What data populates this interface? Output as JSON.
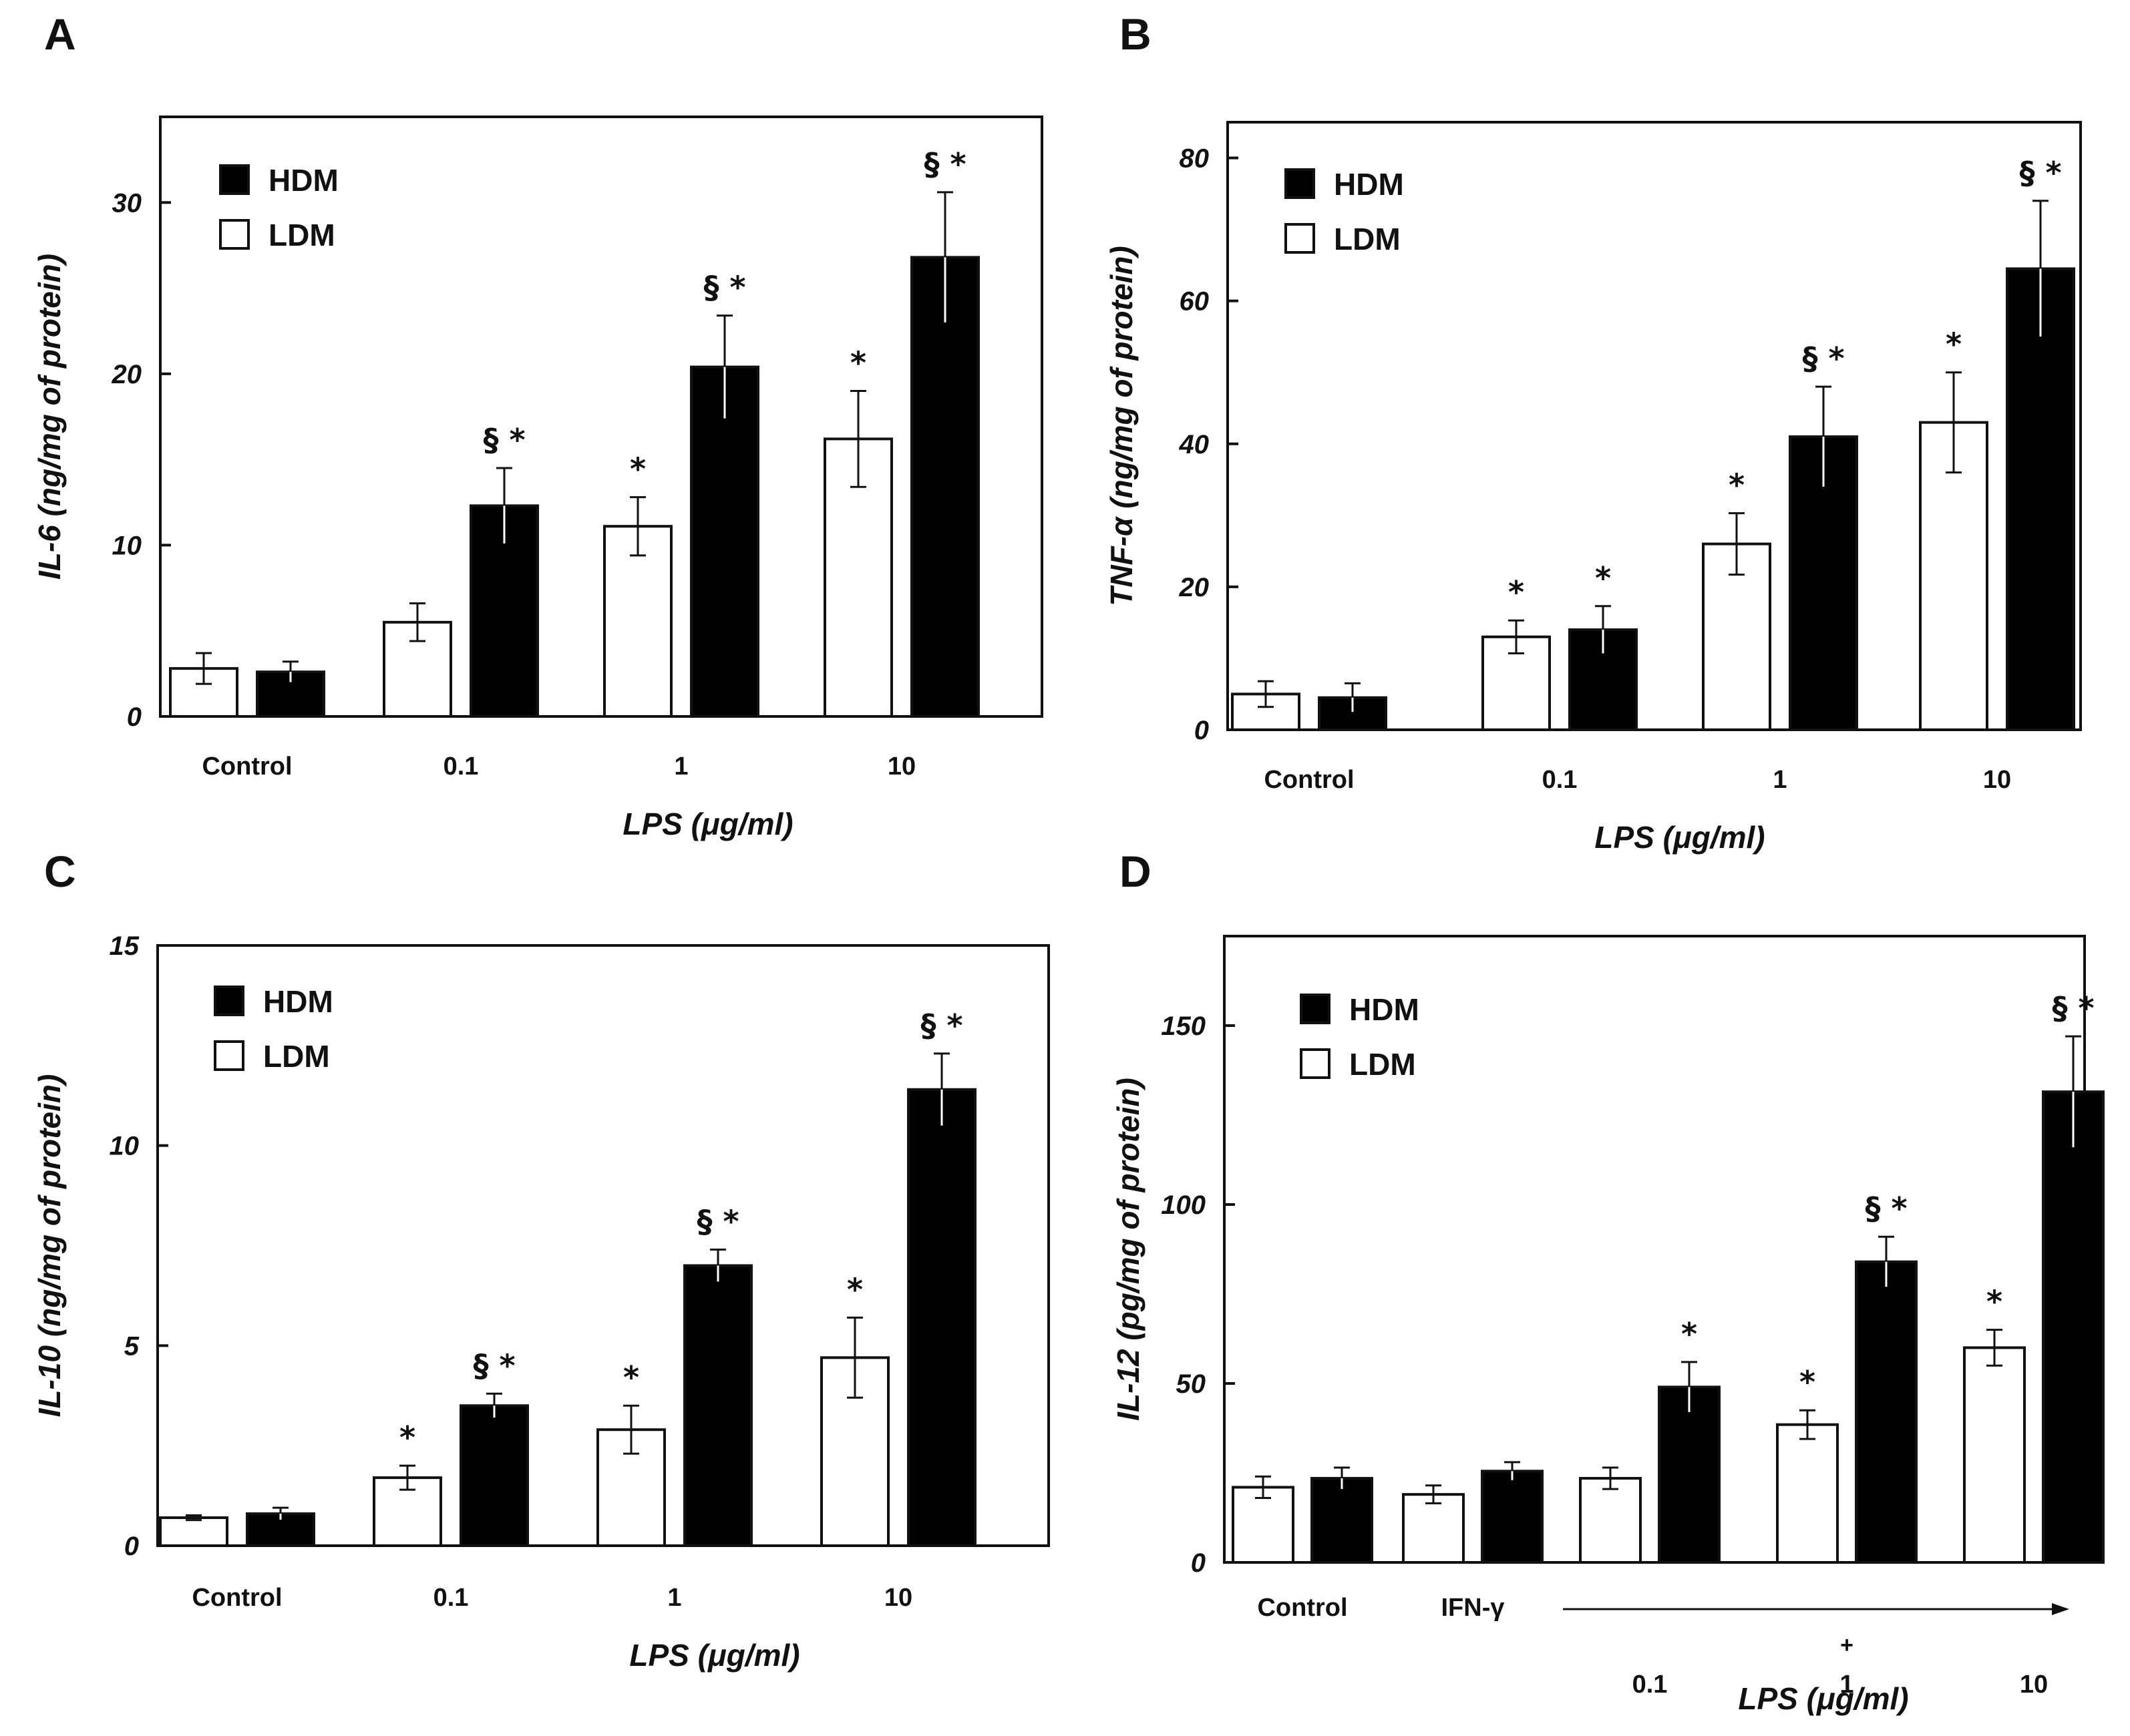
{
  "colors": {
    "hdm": "#000000",
    "ldm": "#ffffff",
    "stroke": "#111111"
  },
  "chart_data": [
    {
      "panel": "A",
      "type": "bar",
      "categories": [
        "Control",
        "0.1",
        "1",
        "10"
      ],
      "xlabel": "LPS  (μg/ml)",
      "ylabel": "IL-6  (ng/mg  of  protein)",
      "ylim": [
        0,
        35
      ],
      "yticks": [
        "0",
        "10",
        "20",
        "30"
      ],
      "ytick_values": [
        0,
        10,
        20,
        30
      ],
      "legend": [
        "HDM",
        "LDM"
      ],
      "series": [
        {
          "name": "LDM",
          "values": [
            2.8,
            5.5,
            11.1,
            16.2
          ],
          "errors": [
            0.9,
            1.1,
            1.7,
            2.8
          ],
          "marks": [
            "",
            "",
            "*",
            "*"
          ]
        },
        {
          "name": "HDM",
          "values": [
            2.6,
            12.3,
            20.4,
            26.8
          ],
          "errors": [
            0.6,
            2.2,
            3.0,
            3.8
          ],
          "marks": [
            "",
            "§ *",
            "§ *",
            "§ *"
          ]
        }
      ]
    },
    {
      "panel": "B",
      "type": "bar",
      "categories": [
        "Control",
        "0.1",
        "1",
        "10"
      ],
      "xlabel": "LPS  (μg/ml)",
      "ylabel": "TNF-α  (ng/mg  of  protein)",
      "ylim": [
        0,
        85
      ],
      "yticks": [
        "0",
        "20",
        "40",
        "60",
        "80"
      ],
      "ytick_values": [
        0,
        20,
        40,
        60,
        80
      ],
      "legend": [
        "HDM",
        "LDM"
      ],
      "series": [
        {
          "name": "LDM",
          "values": [
            5.0,
            13.0,
            26.0,
            43.0
          ],
          "errors": [
            1.8,
            2.3,
            4.3,
            7.0
          ],
          "marks": [
            "",
            "*",
            "*",
            "*"
          ]
        },
        {
          "name": "HDM",
          "values": [
            4.5,
            14.0,
            41.0,
            64.5
          ],
          "errors": [
            2.0,
            3.3,
            7.0,
            9.5
          ],
          "marks": [
            "",
            "*",
            "§ *",
            "§ *"
          ]
        }
      ]
    },
    {
      "panel": "C",
      "type": "bar",
      "categories": [
        "Control",
        "0.1",
        "1",
        "10"
      ],
      "xlabel": "LPS  (μg/ml)",
      "ylabel": "IL-10  (ng/mg  of  protein)",
      "ylim": [
        0,
        15
      ],
      "yticks": [
        "0",
        "5",
        "10",
        "15"
      ],
      "ytick_values": [
        0,
        5,
        10,
        15
      ],
      "legend": [
        "HDM",
        "LDM"
      ],
      "series": [
        {
          "name": "LDM",
          "values": [
            0.7,
            1.7,
            2.9,
            4.7
          ],
          "errors": [
            0.06,
            0.3,
            0.6,
            1.0
          ],
          "marks": [
            "",
            "*",
            "*",
            "*"
          ]
        },
        {
          "name": "HDM",
          "values": [
            0.8,
            3.5,
            7.0,
            11.4
          ],
          "errors": [
            0.15,
            0.3,
            0.4,
            0.9
          ],
          "marks": [
            "",
            "§ *",
            "§ *",
            "§ *"
          ]
        }
      ]
    },
    {
      "panel": "D",
      "type": "bar",
      "categories": [
        "Control",
        "IFN-γ",
        "0.1",
        "1",
        "10"
      ],
      "xlabel": "LPS  (μg/ml)",
      "xnote": "+",
      "ylabel": "IL-12  (pg/mg  of  protein)",
      "ylim": [
        0,
        175
      ],
      "yticks": [
        "0",
        "50",
        "100",
        "150"
      ],
      "ytick_values": [
        0,
        50,
        100,
        150
      ],
      "legend": [
        "HDM",
        "LDM"
      ],
      "series": [
        {
          "name": "LDM",
          "values": [
            21.0,
            19.0,
            23.5,
            38.5,
            60.0
          ],
          "errors": [
            3.0,
            2.5,
            3.0,
            4.0,
            5.0
          ],
          "marks": [
            "",
            "",
            "",
            "*",
            "*"
          ]
        },
        {
          "name": "HDM",
          "values": [
            23.5,
            25.5,
            49.0,
            84.0,
            131.5
          ],
          "errors": [
            3.0,
            2.5,
            7.0,
            7.0,
            15.5
          ],
          "marks": [
            "",
            "",
            "*",
            "§ *",
            "§ *"
          ]
        }
      ]
    }
  ]
}
